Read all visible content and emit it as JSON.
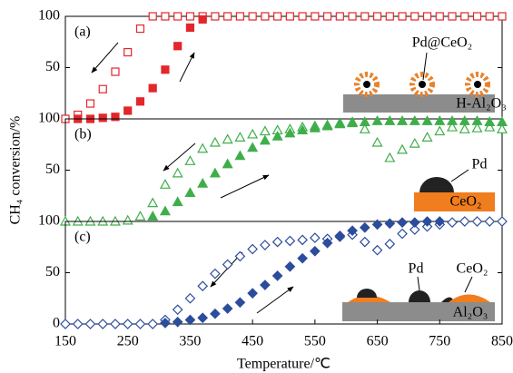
{
  "chart_data": [
    {
      "type": "scatter",
      "panel_label": "(a)",
      "marker": "square",
      "xlim": [
        150,
        850
      ],
      "ylim": [
        0,
        100
      ],
      "yticks": [
        50,
        100
      ],
      "annotations": [
        "Pd@CeO₂",
        "H-Al₂O₃"
      ],
      "series": [
        {
          "color": "#e3262b",
          "filled": false,
          "x": [
            150,
            170,
            190,
            210,
            230,
            250,
            270,
            290,
            310,
            330,
            350,
            370,
            390,
            410,
            430,
            450,
            470,
            490,
            510,
            530,
            550,
            570,
            590,
            610,
            630,
            650,
            670,
            690,
            710,
            730,
            750,
            770,
            790,
            810,
            830,
            850
          ],
          "values": [
            0,
            4,
            15,
            29,
            46,
            65,
            88,
            100,
            100,
            100,
            100,
            100,
            100,
            100,
            100,
            100,
            100,
            100,
            100,
            100,
            100,
            100,
            100,
            100,
            100,
            100,
            100,
            100,
            100,
            100,
            100,
            100,
            100,
            100,
            100,
            100
          ]
        },
        {
          "color": "#e3262b",
          "filled": true,
          "x": [
            170,
            190,
            210,
            230,
            250,
            270,
            290,
            310,
            330,
            350,
            370
          ],
          "values": [
            0,
            0,
            1,
            2,
            8,
            17,
            30,
            48,
            71,
            89,
            97
          ]
        }
      ]
    },
    {
      "type": "scatter",
      "panel_label": "(b)",
      "marker": "triangle",
      "xlim": [
        150,
        850
      ],
      "ylim": [
        0,
        100
      ],
      "yticks": [
        50,
        100
      ],
      "y_label": "CH₄ conversion/%",
      "annotations": [
        "Pd",
        "CeO₂"
      ],
      "series": [
        {
          "color": "#3fae4a",
          "filled": false,
          "x": [
            150,
            170,
            190,
            210,
            230,
            250,
            270,
            290,
            310,
            330,
            350,
            370,
            390,
            410,
            430,
            450,
            470,
            490,
            510,
            530,
            550,
            570,
            590,
            610,
            630,
            650,
            670,
            690,
            710,
            730,
            750,
            770,
            790,
            810,
            830,
            850
          ],
          "values": [
            0,
            0,
            0,
            0,
            0,
            1,
            5,
            18,
            36,
            47,
            59,
            71,
            77,
            80,
            82,
            85,
            88,
            89,
            90,
            92,
            93,
            94,
            96,
            97,
            90,
            77,
            62,
            70,
            76,
            82,
            88,
            92,
            90,
            91,
            92,
            90
          ]
        },
        {
          "color": "#3fae4a",
          "filled": true,
          "x": [
            290,
            310,
            330,
            350,
            370,
            390,
            410,
            430,
            450,
            470,
            490,
            510,
            530,
            550,
            570,
            590,
            610,
            630,
            650,
            670,
            690,
            710,
            730,
            750,
            770,
            790,
            810,
            830,
            850
          ],
          "values": [
            5,
            10,
            19,
            28,
            37,
            47,
            56,
            64,
            72,
            79,
            83,
            86,
            89,
            91,
            93,
            95,
            96,
            97,
            98,
            98,
            98,
            98,
            98,
            98,
            98,
            98,
            98,
            97,
            97
          ]
        }
      ]
    },
    {
      "type": "scatter",
      "panel_label": "(c)",
      "marker": "diamond",
      "xlim": [
        150,
        850
      ],
      "ylim": [
        0,
        100
      ],
      "yticks": [
        0,
        50,
        100
      ],
      "xticks": [
        150,
        250,
        350,
        450,
        550,
        650,
        750,
        850
      ],
      "x_label": "Temperature/℃",
      "annotations": [
        "Pd",
        "CeO₂",
        "Al₂O₃"
      ],
      "series": [
        {
          "color": "#2c4c9c",
          "filled": false,
          "x": [
            150,
            170,
            190,
            210,
            230,
            250,
            270,
            290,
            310,
            330,
            350,
            370,
            390,
            410,
            430,
            450,
            470,
            490,
            510,
            530,
            550,
            570,
            590,
            610,
            630,
            650,
            670,
            690,
            710,
            730,
            750,
            770,
            790,
            810,
            830,
            850
          ],
          "values": [
            0,
            0,
            0,
            0,
            0,
            0,
            0,
            0,
            4,
            14,
            25,
            37,
            49,
            58,
            66,
            73,
            77,
            80,
            81,
            82,
            84,
            83,
            85,
            87,
            80,
            72,
            78,
            88,
            92,
            95,
            97,
            99,
            100,
            100,
            100,
            100
          ]
        },
        {
          "color": "#2c4c9c",
          "filled": true,
          "x": [
            310,
            330,
            350,
            370,
            390,
            410,
            430,
            450,
            470,
            490,
            510,
            530,
            550,
            570,
            590,
            610,
            630,
            650,
            670,
            690,
            710,
            730,
            750
          ],
          "values": [
            1,
            2,
            4,
            6,
            10,
            15,
            21,
            30,
            38,
            47,
            56,
            64,
            71,
            79,
            86,
            91,
            94,
            97,
            98,
            99,
            99,
            100,
            100
          ]
        }
      ]
    }
  ]
}
